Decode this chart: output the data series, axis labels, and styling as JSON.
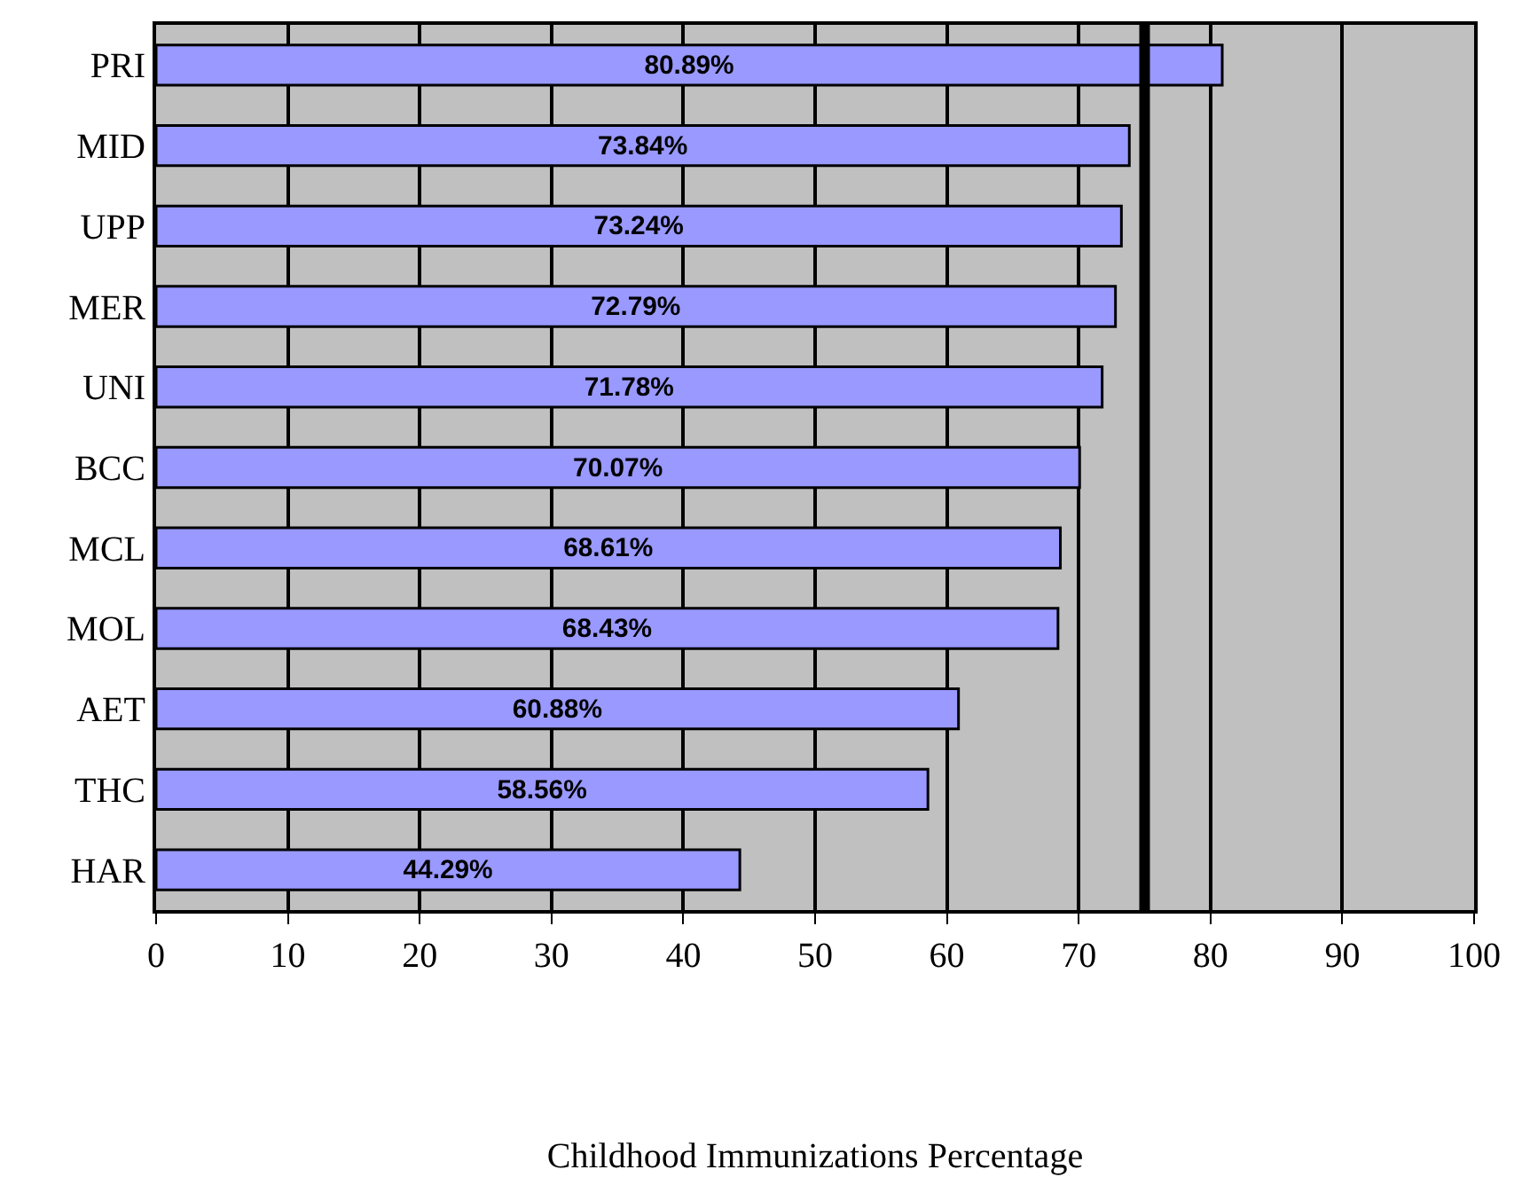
{
  "chart_data": {
    "type": "bar",
    "orientation": "horizontal",
    "xlabel": "Childhood Immunizations Percentage",
    "categories": [
      "PRI",
      "MID",
      "UPP",
      "MER",
      "UNI",
      "BCC",
      "MCL",
      "MOL",
      "AET",
      "THC",
      "HAR"
    ],
    "values": [
      80.89,
      73.84,
      73.24,
      72.79,
      71.78,
      70.07,
      68.61,
      68.43,
      60.88,
      58.56,
      44.29
    ],
    "value_labels": [
      "80.89%",
      "73.84%",
      "73.24%",
      "72.79%",
      "71.78%",
      "70.07%",
      "68.61%",
      "68.43%",
      "60.88%",
      "58.56%",
      "44.29%"
    ],
    "color": "#9999ff",
    "xlim": [
      0,
      100
    ],
    "xticks": [
      0,
      10,
      20,
      30,
      40,
      50,
      60,
      70,
      80,
      90,
      100
    ],
    "ref_lines": [
      {
        "axis": "x",
        "value": 75,
        "color": "#000000"
      }
    ],
    "grid": "x",
    "legend": false
  }
}
